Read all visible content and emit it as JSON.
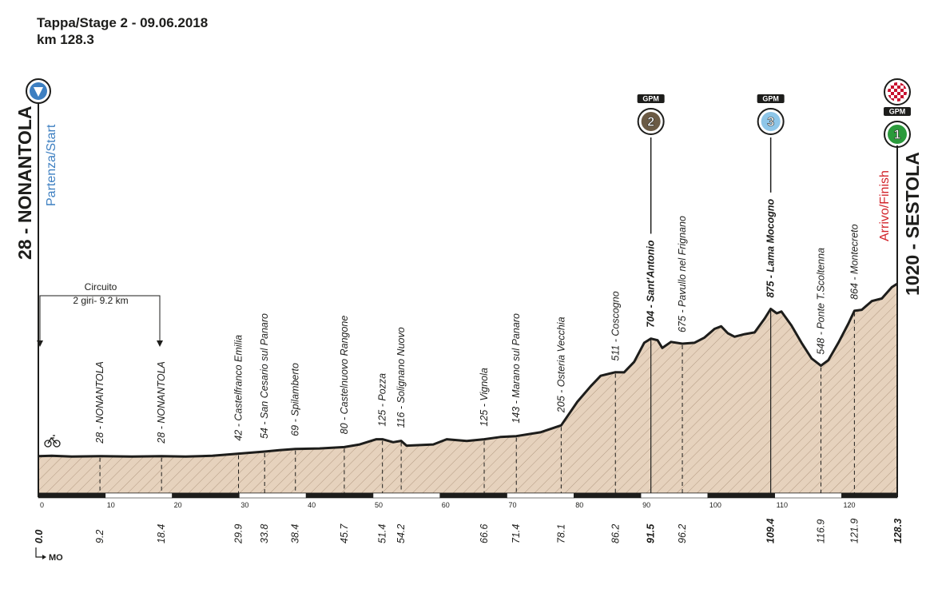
{
  "header": {
    "title": "Tappa/Stage 2 - 09.06.2018",
    "distance": "km 128.3"
  },
  "start": {
    "place": "28 - NONANTOLA",
    "caption": "Partenza/Start",
    "color": "#3d7fc1"
  },
  "finish": {
    "place": "1020 - SESTOLA",
    "caption": "Arrivo/Finish",
    "color": "#d2232a"
  },
  "circuit": {
    "label": "Circuito",
    "detail": "2 giri- 9.2 km"
  },
  "province_marker": "MO",
  "gpm_badges": [
    {
      "label": "GPM",
      "category": "2",
      "km": 91.5,
      "color": "#6b5a44"
    },
    {
      "label": "GPM",
      "category": "3",
      "km": 109.4,
      "color": "#8ec6e8"
    },
    {
      "label": "GPM",
      "category": "1",
      "km": 128.3,
      "color": "#2a9a3b"
    }
  ],
  "chart_data": {
    "type": "area",
    "xlim": [
      0,
      128.3
    ],
    "ylim": [
      0,
      1100
    ],
    "x_ticks": [
      0,
      10,
      20,
      30,
      40,
      50,
      60,
      70,
      80,
      90,
      100,
      110,
      120
    ],
    "fill_color": "#e6d2bd",
    "profile": [
      [
        0,
        28
      ],
      [
        2,
        30
      ],
      [
        5,
        25
      ],
      [
        9.2,
        28
      ],
      [
        14,
        25
      ],
      [
        18.4,
        28
      ],
      [
        22,
        25
      ],
      [
        26,
        30
      ],
      [
        29.9,
        42
      ],
      [
        33.8,
        54
      ],
      [
        36,
        62
      ],
      [
        38.4,
        69
      ],
      [
        42,
        72
      ],
      [
        45.7,
        80
      ],
      [
        48,
        95
      ],
      [
        50.5,
        125
      ],
      [
        51.4,
        125
      ],
      [
        53,
        108
      ],
      [
        54.2,
        116
      ],
      [
        55,
        88
      ],
      [
        59,
        95
      ],
      [
        61,
        125
      ],
      [
        64,
        115
      ],
      [
        66.6,
        125
      ],
      [
        69,
        138
      ],
      [
        71.4,
        143
      ],
      [
        75,
        165
      ],
      [
        78.1,
        205
      ],
      [
        80.5,
        340
      ],
      [
        82.5,
        430
      ],
      [
        84,
        490
      ],
      [
        86.2,
        511
      ],
      [
        87.5,
        510
      ],
      [
        89,
        570
      ],
      [
        90.5,
        680
      ],
      [
        91.5,
        704
      ],
      [
        92.5,
        695
      ],
      [
        93.2,
        650
      ],
      [
        94.5,
        685
      ],
      [
        96.2,
        675
      ],
      [
        98,
        680
      ],
      [
        99.5,
        710
      ],
      [
        101,
        760
      ],
      [
        102,
        775
      ],
      [
        103,
        735
      ],
      [
        104,
        715
      ],
      [
        105.5,
        730
      ],
      [
        107,
        740
      ],
      [
        108.5,
        820
      ],
      [
        109.4,
        875
      ],
      [
        110.3,
        850
      ],
      [
        111,
        860
      ],
      [
        112.5,
        780
      ],
      [
        114,
        680
      ],
      [
        115.5,
        590
      ],
      [
        116.9,
        548
      ],
      [
        118,
        580
      ],
      [
        119.5,
        680
      ],
      [
        121,
        790
      ],
      [
        121.9,
        864
      ],
      [
        123,
        870
      ],
      [
        124.5,
        920
      ],
      [
        126,
        935
      ],
      [
        127.5,
        1000
      ],
      [
        128.3,
        1020
      ]
    ],
    "points": [
      {
        "km": 9.2,
        "alt": 28,
        "name": "NONANTOLA"
      },
      {
        "km": 18.4,
        "alt": 28,
        "name": "NONANTOLA"
      },
      {
        "km": 29.9,
        "alt": 42,
        "name": "Castelfranco Emilia"
      },
      {
        "km": 33.8,
        "alt": 54,
        "name": "San Cesario sul Panaro"
      },
      {
        "km": 38.4,
        "alt": 69,
        "name": "Spilamberto"
      },
      {
        "km": 45.7,
        "alt": 80,
        "name": "Castelnuovo Rangone"
      },
      {
        "km": 51.4,
        "alt": 125,
        "name": "Pozza"
      },
      {
        "km": 54.2,
        "alt": 116,
        "name": "Solignano Nuovo"
      },
      {
        "km": 66.6,
        "alt": 125,
        "name": "Vignola"
      },
      {
        "km": 71.4,
        "alt": 143,
        "name": "Marano sul Panaro"
      },
      {
        "km": 78.1,
        "alt": 205,
        "name": "Osteria Vecchia"
      },
      {
        "km": 86.2,
        "alt": 511,
        "name": "Coscogno"
      },
      {
        "km": 91.5,
        "alt": 704,
        "name": "Sant'Antonio",
        "bold": true
      },
      {
        "km": 96.2,
        "alt": 675,
        "name": "Pavullo nel Frignano"
      },
      {
        "km": 109.4,
        "alt": 875,
        "name": "Lama Mocogno",
        "bold": true
      },
      {
        "km": 116.9,
        "alt": 548,
        "name": "Ponte T.Scoltenna"
      },
      {
        "km": 121.9,
        "alt": 864,
        "name": "Montecreto"
      }
    ],
    "start_km": "0.0",
    "finish_km": "128.3"
  }
}
